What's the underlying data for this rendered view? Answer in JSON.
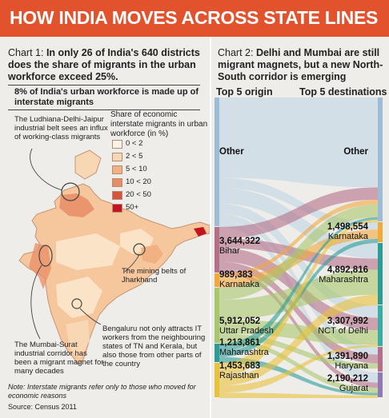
{
  "header": {
    "title": "HOW INDIA MOVES ACROSS STATE LINES"
  },
  "chart1": {
    "title_prefix": "Chart 1: ",
    "title_bold": "In only 26 of India's 640 districts does the share of migrants in the urban workforce exceed 25%.",
    "subtitle": "8% of India's urban workforce is made up of interstate migrants",
    "legend_title": "Share of economic interstate migrants in urban workforce (in %)",
    "legend": [
      {
        "label": "0 < 2",
        "color": "#fbf1e4"
      },
      {
        "label": "2 < 5",
        "color": "#f8d7b4"
      },
      {
        "label": "5 < 10",
        "color": "#f2b183"
      },
      {
        "label": "10 < 20",
        "color": "#e88c66"
      },
      {
        "label": "20 < 50",
        "color": "#d6553a"
      },
      {
        "label": "50+",
        "color": "#c3141f"
      }
    ],
    "annotations": {
      "ludhiana": "The Ludhiana-Delhi-Jaipur industrial belt sees an influx of working-class migrants",
      "jharkhand": "The mining belts of Jharkhand",
      "bengaluru": "Bengaluru not only attracts IT workers from the neighbouring states of TN and Kerala, but also those from other parts of the country",
      "mumbai": "The Mumbai-Surat industrial corridor has been a migrant magnet for many decades"
    },
    "note": "Note: Interstate migrants refer only to those who moved for economic reasons",
    "source": "Source: Census 2011"
  },
  "chart2": {
    "title_prefix": "Chart 2: ",
    "title_bold": "Delhi and Mumbai are still migrant magnets, but a new North-South corridor is emerging",
    "origin_header": "Top 5 origin",
    "dest_header": "Top 5 destinations"
  },
  "chart_data": [
    {
      "type": "heatmap",
      "title": "8% of India's urban workforce is made up of interstate migrants",
      "legend_title": "Share of economic interstate migrants in urban workforce (in %)",
      "bins": [
        "0 < 2",
        "2 < 5",
        "5 < 10",
        "10 < 20",
        "20 < 50",
        "50+"
      ],
      "colors": [
        "#fbf1e4",
        "#f8d7b4",
        "#f2b183",
        "#e88c66",
        "#d6553a",
        "#c3141f"
      ]
    },
    {
      "type": "sankey",
      "origins": [
        {
          "name": "Other",
          "value": ""
        },
        {
          "name": "Bihar",
          "value": "3,644,322",
          "color": "#b46f8b"
        },
        {
          "name": "Karnataka",
          "value": "989,383",
          "color": "#f2a93b"
        },
        {
          "name": "Uttar Pradesh",
          "value": "5,912,052",
          "color": "#a8c66c"
        },
        {
          "name": "Maharashtra",
          "value": "1,213,861",
          "color": "#2c9c96"
        },
        {
          "name": "Rajasthan",
          "value": "1,453,683",
          "color": "#e8c23a"
        }
      ],
      "destinations": [
        {
          "name": "Other",
          "value": ""
        },
        {
          "name": "Karnataka",
          "value": "1,498,554",
          "color": "#f2a93b"
        },
        {
          "name": "Maharashtra",
          "value": "4,892,816",
          "color": "#2c9c96"
        },
        {
          "name": "NCT of Delhi",
          "value": "3,307,992",
          "color": "#3aaea4"
        },
        {
          "name": "Haryana",
          "value": "1,391,890",
          "color": "#b46f8b"
        },
        {
          "name": "Gujarat",
          "value": "2,190,212",
          "color": "#8e7bb6"
        }
      ]
    }
  ]
}
